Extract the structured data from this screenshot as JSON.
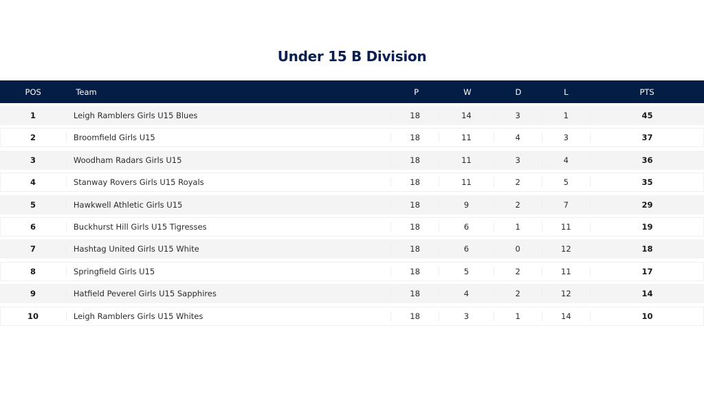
{
  "title": "Under 15 B Division",
  "headers": {
    "pos": "POS",
    "team": "Team",
    "p": "P",
    "w": "W",
    "d": "D",
    "l": "L",
    "pts": "PTS"
  },
  "rows": [
    {
      "pos": "1",
      "team": "Leigh Ramblers Girls U15 Blues",
      "p": "18",
      "w": "14",
      "d": "3",
      "l": "1",
      "pts": "45"
    },
    {
      "pos": "2",
      "team": "Broomfield Girls U15",
      "p": "18",
      "w": "11",
      "d": "4",
      "l": "3",
      "pts": "37"
    },
    {
      "pos": "3",
      "team": "Woodham Radars Girls U15",
      "p": "18",
      "w": "11",
      "d": "3",
      "l": "4",
      "pts": "36"
    },
    {
      "pos": "4",
      "team": "Stanway Rovers Girls U15 Royals",
      "p": "18",
      "w": "11",
      "d": "2",
      "l": "5",
      "pts": "35"
    },
    {
      "pos": "5",
      "team": "Hawkwell Athletic Girls U15",
      "p": "18",
      "w": "9",
      "d": "2",
      "l": "7",
      "pts": "29"
    },
    {
      "pos": "6",
      "team": "Buckhurst Hill Girls U15 Tigresses",
      "p": "18",
      "w": "6",
      "d": "1",
      "l": "11",
      "pts": "19"
    },
    {
      "pos": "7",
      "team": "Hashtag United Girls U15 White",
      "p": "18",
      "w": "6",
      "d": "0",
      "l": "12",
      "pts": "18"
    },
    {
      "pos": "8",
      "team": "Springfield Girls U15",
      "p": "18",
      "w": "5",
      "d": "2",
      "l": "11",
      "pts": "17"
    },
    {
      "pos": "9",
      "team": "Hatfield Peverel Girls U15 Sapphires",
      "p": "18",
      "w": "4",
      "d": "2",
      "l": "12",
      "pts": "14"
    },
    {
      "pos": "10",
      "team": "Leigh Ramblers Girls U15 Whites",
      "p": "18",
      "w": "3",
      "d": "1",
      "l": "14",
      "pts": "10"
    }
  ]
}
